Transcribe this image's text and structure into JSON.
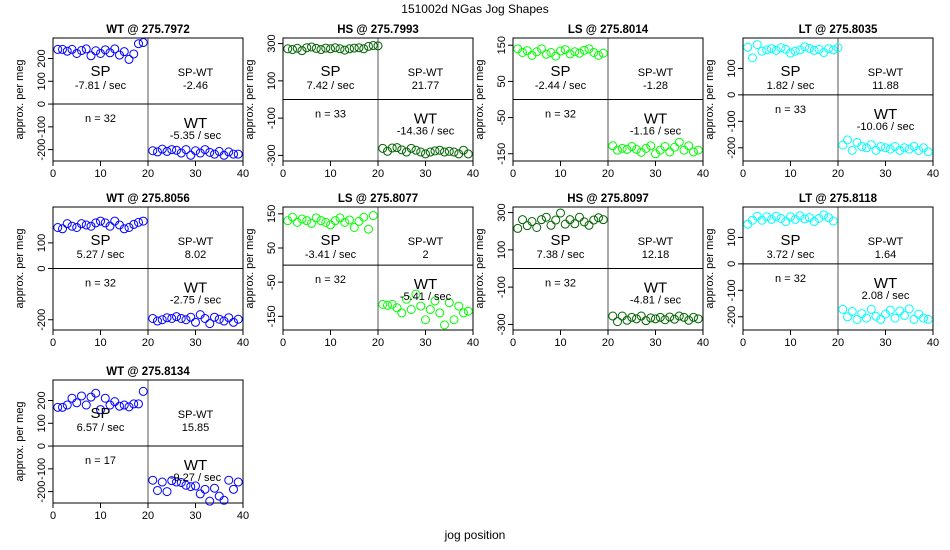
{
  "page": {
    "title": "151002d   NGas Jog Shapes",
    "xlabel": "jog position"
  },
  "colors": {
    "WT": "#0000ff",
    "HS": "#006400",
    "LS": "#00ff00",
    "LT": "#00ffff",
    "axis": "#000000",
    "divider": "#555555"
  },
  "chart_data": [
    {
      "type": "scatter",
      "title": "WT @ 275.7972",
      "series_key": "WT",
      "ylabel": "approx. per meg",
      "xlim": [
        0,
        40
      ],
      "ylim": [
        -250,
        290
      ],
      "xticks": [
        0,
        10,
        20,
        30,
        40
      ],
      "yticks": [
        -200,
        -100,
        0,
        100,
        200
      ],
      "stats": {
        "sp_label": "SP",
        "sp_rate": "-7.81 / sec",
        "spwt_label": "SP-WT",
        "spwt_value": "-2.46",
        "n_label": "n = 32",
        "wt_label": "WT",
        "wt_rate": "-5.35 / sec"
      },
      "x": [
        1,
        2,
        3,
        4,
        5,
        6,
        7,
        8,
        9,
        10,
        11,
        12,
        13,
        14,
        15,
        16,
        17,
        18,
        19,
        21,
        22,
        23,
        24,
        25,
        26,
        27,
        28,
        29,
        30,
        31,
        32,
        33,
        34,
        35,
        36,
        37,
        38,
        39
      ],
      "y": [
        240,
        240,
        232,
        240,
        222,
        235,
        242,
        212,
        234,
        222,
        238,
        225,
        242,
        215,
        230,
        196,
        220,
        265,
        270,
        -205,
        -210,
        -198,
        -208,
        -200,
        -203,
        -215,
        -200,
        -225,
        -205,
        -215,
        -200,
        -212,
        -220,
        -208,
        -225,
        -210,
        -220,
        -220
      ]
    },
    {
      "type": "scatter",
      "title": "HS @ 275.7993",
      "series_key": "HS",
      "ylabel": "approx. per meg",
      "xlim": [
        0,
        40
      ],
      "ylim": [
        -330,
        330
      ],
      "xticks": [
        0,
        10,
        20,
        30,
        40
      ],
      "yticks": [
        -300,
        -100,
        100,
        300
      ],
      "stats": {
        "sp_label": "SP",
        "sp_rate": "7.42 / sec",
        "spwt_label": "SP-WT",
        "spwt_value": "21.77",
        "n_label": "n = 33",
        "wt_label": "WT",
        "wt_rate": "-14.36 / sec"
      },
      "x": [
        1,
        2,
        3,
        4,
        5,
        6,
        7,
        8,
        9,
        10,
        11,
        12,
        13,
        14,
        15,
        16,
        17,
        18,
        19,
        20,
        21,
        22,
        23,
        24,
        25,
        26,
        27,
        28,
        29,
        30,
        31,
        32,
        33,
        34,
        35,
        36,
        37,
        38,
        39
      ],
      "y": [
        272,
        268,
        275,
        262,
        278,
        282,
        274,
        268,
        276,
        272,
        278,
        272,
        265,
        272,
        276,
        278,
        272,
        285,
        290,
        288,
        -262,
        -278,
        -260,
        -258,
        -270,
        -282,
        -262,
        -272,
        -282,
        -292,
        -282,
        -276,
        -272,
        -282,
        -278,
        -282,
        -292,
        -272,
        -292
      ]
    },
    {
      "type": "scatter",
      "title": "LS @ 275.8014",
      "series_key": "LS",
      "ylabel": "approx. per meg",
      "xlim": [
        0,
        40
      ],
      "ylim": [
        -170,
        170
      ],
      "xticks": [
        0,
        10,
        20,
        30,
        40
      ],
      "yticks": [
        -150,
        -50,
        50,
        150
      ],
      "stats": {
        "sp_label": "SP",
        "sp_rate": "-2.44 / sec",
        "spwt_label": "SP-WT",
        "spwt_value": "-1.28",
        "n_label": "n = 32",
        "wt_label": "WT",
        "wt_rate": "-1.16 / sec"
      },
      "x": [
        1,
        2,
        3,
        4,
        5,
        6,
        7,
        8,
        9,
        10,
        11,
        12,
        13,
        14,
        15,
        16,
        17,
        18,
        19,
        21,
        22,
        23,
        24,
        25,
        26,
        27,
        28,
        29,
        30,
        31,
        32,
        33,
        34,
        35,
        36,
        37,
        38,
        39
      ],
      "y": [
        140,
        130,
        135,
        122,
        132,
        140,
        125,
        130,
        120,
        134,
        138,
        126,
        132,
        128,
        136,
        140,
        130,
        122,
        128,
        -128,
        -140,
        -135,
        -138,
        -130,
        -138,
        -146,
        -135,
        -128,
        -150,
        -140,
        -130,
        -145,
        -132,
        -118,
        -140,
        -128,
        -145,
        -140
      ]
    },
    {
      "type": "scatter",
      "title": "LT @ 275.8035",
      "series_key": "LT",
      "ylabel": "approx. per meg",
      "xlim": [
        0,
        40
      ],
      "ylim": [
        -250,
        215
      ],
      "xticks": [
        0,
        10,
        20,
        30,
        40
      ],
      "yticks": [
        -200,
        -100,
        0,
        100
      ],
      "stats": {
        "sp_label": "SP",
        "sp_rate": "1.82 / sec",
        "spwt_label": "SP-WT",
        "spwt_value": "11.88",
        "n_label": "n = 33",
        "wt_label": "WT",
        "wt_rate": "-10.06 / sec"
      },
      "x": [
        1,
        2,
        3,
        4,
        5,
        6,
        7,
        8,
        9,
        10,
        11,
        12,
        13,
        14,
        15,
        16,
        17,
        18,
        19,
        20,
        21,
        22,
        23,
        24,
        25,
        26,
        27,
        28,
        29,
        30,
        31,
        32,
        33,
        34,
        35,
        36,
        37,
        38,
        39
      ],
      "y": [
        180,
        140,
        190,
        165,
        170,
        175,
        168,
        178,
        172,
        158,
        165,
        170,
        182,
        176,
        168,
        172,
        160,
        175,
        170,
        178,
        -190,
        -170,
        -210,
        -180,
        -195,
        -200,
        -188,
        -210,
        -195,
        -200,
        -205,
        -195,
        -210,
        -200,
        -205,
        -195,
        -210,
        -200,
        -215
      ]
    },
    {
      "type": "scatter",
      "title": "WT @ 275.8056",
      "series_key": "WT",
      "ylabel": "approx. per meg",
      "xlim": [
        0,
        40
      ],
      "ylim": [
        -240,
        240
      ],
      "xticks": [
        0,
        10,
        20,
        30,
        40
      ],
      "yticks": [
        -200,
        0,
        100
      ],
      "stats": {
        "sp_label": "SP",
        "sp_rate": "5.27 / sec",
        "spwt_label": "SP-WT",
        "spwt_value": "8.02",
        "n_label": "n = 32",
        "wt_label": "WT",
        "wt_rate": "-2.75 / sec"
      },
      "x": [
        1,
        2,
        3,
        4,
        5,
        6,
        7,
        8,
        9,
        10,
        11,
        12,
        13,
        14,
        15,
        16,
        17,
        18,
        19,
        21,
        22,
        23,
        24,
        25,
        26,
        27,
        28,
        29,
        30,
        31,
        32,
        33,
        34,
        35,
        36,
        37,
        38,
        39
      ],
      "y": [
        160,
        155,
        175,
        165,
        160,
        175,
        170,
        165,
        178,
        185,
        178,
        165,
        185,
        170,
        155,
        160,
        172,
        180,
        185,
        -195,
        -205,
        -200,
        -192,
        -195,
        -188,
        -195,
        -200,
        -190,
        -210,
        -180,
        -195,
        -215,
        -190,
        -198,
        -205,
        -192,
        -210,
        -198
      ]
    },
    {
      "type": "scatter",
      "title": "LS @ 275.8077",
      "series_key": "LS",
      "ylabel": "approx. per meg",
      "xlim": [
        0,
        40
      ],
      "ylim": [
        -190,
        170
      ],
      "xticks": [
        0,
        10,
        20,
        30,
        40
      ],
      "yticks": [
        -150,
        -50,
        50,
        150
      ],
      "stats": {
        "sp_label": "SP",
        "sp_rate": "-3.41 / sec",
        "spwt_label": "SP-WT",
        "spwt_value": "2",
        "n_label": "n = 32",
        "wt_label": "WT",
        "wt_rate": "-5.41 / sec"
      },
      "x": [
        1,
        2,
        3,
        4,
        5,
        6,
        7,
        8,
        9,
        10,
        11,
        12,
        13,
        14,
        15,
        16,
        17,
        18,
        19,
        21,
        22,
        23,
        24,
        25,
        26,
        27,
        28,
        29,
        30,
        31,
        32,
        33,
        34,
        35,
        36,
        37,
        38,
        39
      ],
      "y": [
        130,
        140,
        125,
        135,
        130,
        122,
        138,
        130,
        125,
        118,
        130,
        138,
        125,
        132,
        110,
        128,
        140,
        105,
        145,
        -115,
        -118,
        -115,
        -125,
        -140,
        -100,
        -130,
        -85,
        -120,
        -160,
        -130,
        -105,
        -140,
        -175,
        -110,
        -160,
        -120,
        -140,
        -135
      ]
    },
    {
      "type": "scatter",
      "title": "HS @ 275.8097",
      "series_key": "HS",
      "ylabel": "approx. per meg",
      "xlim": [
        0,
        40
      ],
      "ylim": [
        -330,
        330
      ],
      "xticks": [
        0,
        10,
        20,
        30,
        40
      ],
      "yticks": [
        -300,
        -100,
        100,
        300
      ],
      "stats": {
        "sp_label": "SP",
        "sp_rate": "7.38 / sec",
        "spwt_label": "SP-WT",
        "spwt_value": "12.18",
        "n_label": "n = 32",
        "wt_label": "WT",
        "wt_rate": "-4.81 / sec"
      },
      "x": [
        1,
        2,
        3,
        4,
        5,
        6,
        7,
        8,
        9,
        10,
        11,
        12,
        13,
        14,
        15,
        16,
        17,
        18,
        19,
        21,
        22,
        23,
        24,
        25,
        26,
        27,
        28,
        29,
        30,
        31,
        32,
        33,
        34,
        35,
        36,
        37,
        38,
        39
      ],
      "y": [
        215,
        262,
        230,
        252,
        220,
        262,
        275,
        232,
        260,
        298,
        238,
        262,
        240,
        275,
        250,
        232,
        260,
        272,
        262,
        -255,
        -285,
        -255,
        -278,
        -262,
        -270,
        -255,
        -280,
        -265,
        -270,
        -262,
        -275,
        -260,
        -272,
        -255,
        -262,
        -278,
        -262,
        -270
      ]
    },
    {
      "type": "scatter",
      "title": "LT @ 275.8118",
      "series_key": "LT",
      "ylabel": "approx. per meg",
      "xlim": [
        0,
        40
      ],
      "ylim": [
        -250,
        215
      ],
      "xticks": [
        0,
        10,
        20,
        30,
        40
      ],
      "yticks": [
        -200,
        -100,
        0,
        100
      ],
      "stats": {
        "sp_label": "SP",
        "sp_rate": "3.72 / sec",
        "spwt_label": "SP-WT",
        "spwt_value": "1.64",
        "n_label": "n = 32",
        "wt_label": "WT",
        "wt_rate": "2.08 / sec"
      },
      "x": [
        1,
        2,
        3,
        4,
        5,
        6,
        7,
        8,
        9,
        10,
        11,
        12,
        13,
        14,
        15,
        16,
        17,
        18,
        19,
        21,
        22,
        23,
        24,
        25,
        26,
        27,
        28,
        29,
        30,
        31,
        32,
        33,
        34,
        35,
        36,
        37,
        38,
        39
      ],
      "y": [
        150,
        165,
        180,
        165,
        178,
        168,
        180,
        172,
        160,
        178,
        168,
        182,
        170,
        175,
        160,
        172,
        185,
        175,
        162,
        -172,
        -200,
        -180,
        -210,
        -188,
        -205,
        -172,
        -198,
        -210,
        -190,
        -175,
        -205,
        -178,
        -195,
        -170,
        -210,
        -190,
        -205,
        -210
      ]
    },
    {
      "type": "scatter",
      "title": "WT @ 275.8134",
      "series_key": "WT",
      "ylabel": "approx. per meg",
      "xlim": [
        0,
        40
      ],
      "ylim": [
        -250,
        290
      ],
      "xticks": [
        0,
        10,
        20,
        30,
        40
      ],
      "yticks": [
        -200,
        -100,
        0,
        100,
        200
      ],
      "stats": {
        "sp_label": "SP",
        "sp_rate": "6.57 / sec",
        "spwt_label": "SP-WT",
        "spwt_value": "15.85",
        "n_label": "n = 17",
        "wt_label": "WT",
        "wt_rate": "-9.27 / sec"
      },
      "x": [
        1,
        2,
        3,
        4,
        5,
        6,
        7,
        8,
        9,
        10,
        11,
        12,
        13,
        14,
        15,
        16,
        17,
        18,
        19,
        21,
        22,
        23,
        24,
        25,
        26,
        27,
        28,
        29,
        30,
        31,
        32,
        33,
        34,
        35,
        36,
        37,
        38,
        39
      ],
      "y": [
        170,
        170,
        180,
        210,
        190,
        220,
        180,
        215,
        232,
        160,
        210,
        180,
        195,
        175,
        180,
        172,
        185,
        185,
        240,
        -150,
        -195,
        -158,
        -200,
        -152,
        -158,
        -160,
        -172,
        -178,
        -175,
        -210,
        -190,
        -242,
        -185,
        -220,
        -238,
        -150,
        -190,
        -158
      ]
    }
  ]
}
